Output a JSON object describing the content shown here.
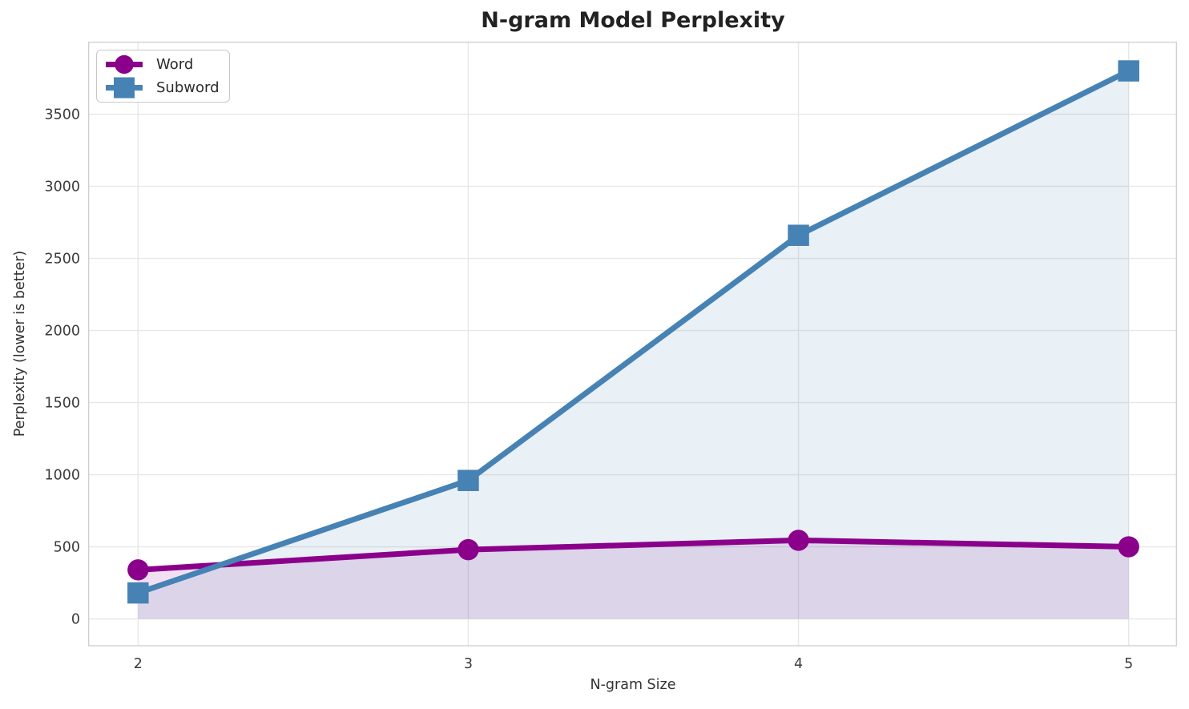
{
  "figure": {
    "background": "#ffffff"
  },
  "chart_data": {
    "type": "line",
    "title": "N-gram Model Perplexity",
    "xlabel": "N-gram Size",
    "ylabel": "Perplexity (lower is better)",
    "x": [
      2,
      3,
      4,
      5
    ],
    "x_tick_labels": [
      "2",
      "3",
      "4",
      "5"
    ],
    "y_ticks": [
      0,
      500,
      1000,
      1500,
      2000,
      2500,
      3000,
      3500
    ],
    "xlim": [
      1.8505,
      5.1446
    ],
    "ylim": [
      -186,
      3999
    ],
    "grid": true,
    "legend_position": "upper-left",
    "series": [
      {
        "name": "Word",
        "values": [
          340,
          480,
          545,
          500
        ],
        "color": "#8B008B",
        "marker": "circle",
        "fill_to_zero": true,
        "fill_alpha": 0.12
      },
      {
        "name": "Subword",
        "values": [
          180,
          960,
          2660,
          3800
        ],
        "color": "#4682B4",
        "marker": "square",
        "fill_to_zero": true,
        "fill_alpha": 0.12
      }
    ]
  }
}
